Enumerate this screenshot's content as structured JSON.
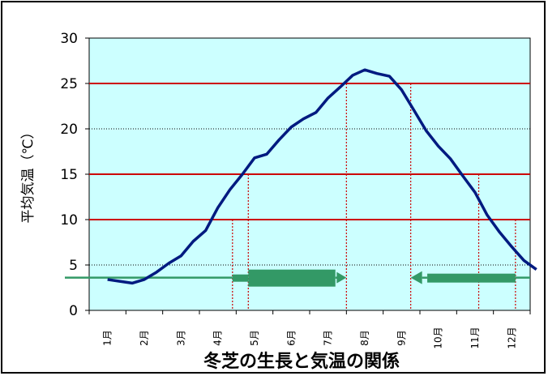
{
  "chart_data": {
    "type": "line",
    "title": "冬芝の生長と気温の関係",
    "ylabel": "平均気温（℃）",
    "xlabel": "",
    "ylim": [
      0,
      30
    ],
    "yticks": [
      0,
      5,
      10,
      15,
      20,
      25,
      30
    ],
    "categories": [
      "1月",
      "2月",
      "3月",
      "4月",
      "5月",
      "6月",
      "7月",
      "8月",
      "9月",
      "10月",
      "11月",
      "12月"
    ],
    "grid": {
      "major_lines": [
        10,
        15,
        25
      ],
      "minor_lines": [
        5,
        20
      ]
    },
    "series": [
      {
        "x": [
          0.5,
          0.83,
          1.17,
          1.5,
          1.83,
          2.17,
          2.5,
          2.83,
          3.17,
          3.5,
          3.83,
          4.17,
          4.5,
          4.83,
          5.17,
          5.5,
          5.83,
          6.17,
          6.5,
          6.83,
          7.17,
          7.5,
          7.83,
          8.17,
          8.5,
          8.83,
          9.17,
          9.5,
          9.83,
          10.17,
          10.5,
          10.83,
          11.17,
          11.5,
          11.83,
          12.17
        ],
        "values": [
          3.4,
          3.2,
          3.0,
          3.4,
          4.2,
          5.2,
          6.0,
          7.6,
          8.8,
          11.3,
          13.3,
          15.0,
          16.8,
          17.2,
          18.8,
          20.2,
          21.1,
          21.8,
          23.4,
          24.6,
          25.9,
          26.5,
          26.1,
          25.8,
          24.3,
          22.1,
          19.8,
          18.1,
          16.7,
          14.8,
          13.0,
          10.5,
          8.6,
          7.0,
          5.5,
          4.5
        ],
        "color": "#001a80"
      }
    ],
    "reference_lines": [
      {
        "x": 3.9,
        "y": 10,
        "color": "#cc0000"
      },
      {
        "x": 4.33,
        "y": 15,
        "color": "#cc0000"
      },
      {
        "x": 7.0,
        "y": 25,
        "color": "#cc0000"
      },
      {
        "x": 8.75,
        "y": 25,
        "color": "#cc0000"
      },
      {
        "x": 10.6,
        "y": 15,
        "color": "#cc0000"
      },
      {
        "x": 11.6,
        "y": 10,
        "color": "#cc0000"
      }
    ],
    "growth_arrows": {
      "color": "#339966",
      "baseline_y": 3.6,
      "spring": {
        "thin_start": 3.9,
        "thin_end": 4.33,
        "thick_start": 4.33,
        "thick_end": 6.7,
        "arrow_end": 7.0
      },
      "autumn": {
        "arrow_start": 8.75,
        "thin_start": 9.2,
        "thin_end": 11.6
      }
    },
    "colors": {
      "plot_bg": "#ccffff",
      "major_grid": "#cc0000",
      "minor_grid": "#000000"
    }
  }
}
